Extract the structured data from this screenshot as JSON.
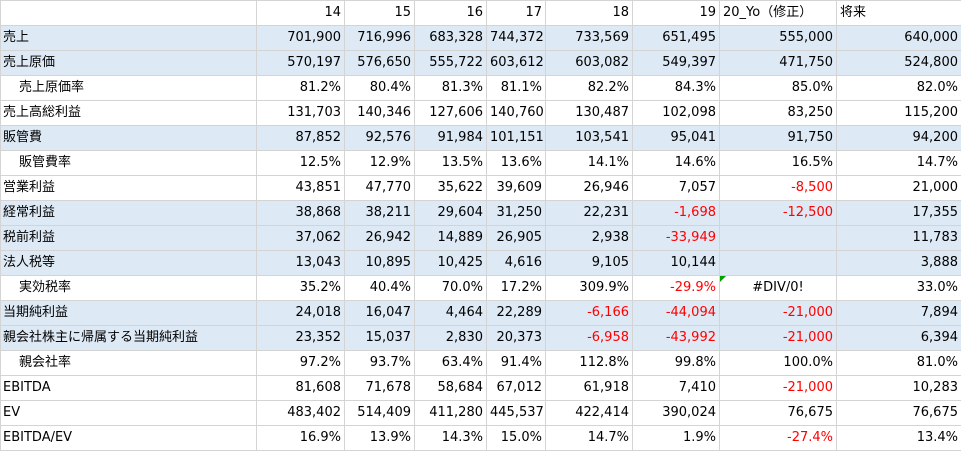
{
  "headers": [
    "",
    "14",
    "15",
    "16",
    "17",
    "18",
    "19",
    "20_Yo（修正）",
    "将来"
  ],
  "rows": [
    {
      "label": "売上",
      "indent": false,
      "hl": true,
      "cells": [
        "701,900",
        "716,996",
        "683,328",
        "744,372",
        "733,569",
        "651,495",
        "555,000",
        "640,000"
      ]
    },
    {
      "label": "売上原価",
      "indent": false,
      "hl": true,
      "cells": [
        "570,197",
        "576,650",
        "555,722",
        "603,612",
        "603,082",
        "549,397",
        "471,750",
        "524,800"
      ]
    },
    {
      "label": "売上原価率",
      "indent": true,
      "hl": false,
      "cells": [
        "81.2%",
        "80.4%",
        "81.3%",
        "81.1%",
        "82.2%",
        "84.3%",
        "85.0%",
        "82.0%"
      ]
    },
    {
      "label": "売上高総利益",
      "indent": false,
      "hl": false,
      "cells": [
        "131,703",
        "140,346",
        "127,606",
        "140,760",
        "130,487",
        "102,098",
        "83,250",
        "115,200"
      ]
    },
    {
      "label": "販管費",
      "indent": false,
      "hl": true,
      "cells": [
        "87,852",
        "92,576",
        "91,984",
        "101,151",
        "103,541",
        "95,041",
        "91,750",
        "94,200"
      ]
    },
    {
      "label": "販管費率",
      "indent": true,
      "hl": false,
      "cells": [
        "12.5%",
        "12.9%",
        "13.5%",
        "13.6%",
        "14.1%",
        "14.6%",
        "16.5%",
        "14.7%"
      ]
    },
    {
      "label": "営業利益",
      "indent": false,
      "hl": false,
      "cells": [
        "43,851",
        "47,770",
        "35,622",
        "39,609",
        "26,946",
        "7,057",
        "-8,500",
        "21,000"
      ]
    },
    {
      "label": "経常利益",
      "indent": false,
      "hl": true,
      "cells": [
        "38,868",
        "38,211",
        "29,604",
        "31,250",
        "22,231",
        "-1,698",
        "-12,500",
        "17,355"
      ]
    },
    {
      "label": "税前利益",
      "indent": false,
      "hl": true,
      "cells": [
        "37,062",
        "26,942",
        "14,889",
        "26,905",
        "2,938",
        "-33,949",
        "",
        "11,783"
      ]
    },
    {
      "label": "法人税等",
      "indent": false,
      "hl": true,
      "cells": [
        "13,043",
        "10,895",
        "10,425",
        "4,616",
        "9,105",
        "10,144",
        "",
        "3,888"
      ]
    },
    {
      "label": "実効税率",
      "indent": true,
      "hl": false,
      "cells": [
        "35.2%",
        "40.4%",
        "70.0%",
        "17.2%",
        "309.9%",
        "-29.9%",
        "#DIV/0!",
        "33.0%"
      ]
    },
    {
      "label": "当期純利益",
      "indent": false,
      "hl": true,
      "cells": [
        "24,018",
        "16,047",
        "4,464",
        "22,289",
        "-6,166",
        "-44,094",
        "-21,000",
        "7,894"
      ]
    },
    {
      "label": "親会社株主に帰属する当期純利益",
      "indent": false,
      "hl": true,
      "cells": [
        "23,352",
        "15,037",
        "2,830",
        "20,373",
        "-6,958",
        "-43,992",
        "-21,000",
        "6,394"
      ]
    },
    {
      "label": "親会社率",
      "indent": true,
      "hl": false,
      "cells": [
        "97.2%",
        "93.7%",
        "63.4%",
        "91.4%",
        "112.8%",
        "99.8%",
        "100.0%",
        "81.0%"
      ]
    },
    {
      "label": "EBITDA",
      "indent": false,
      "hl": false,
      "cells": [
        "81,608",
        "71,678",
        "58,684",
        "67,012",
        "61,918",
        "7,410",
        "-21,000",
        "10,283"
      ]
    },
    {
      "label": "EV",
      "indent": false,
      "hl": false,
      "cells": [
        "483,402",
        "514,409",
        "411,280",
        "445,537",
        "422,414",
        "390,024",
        "76,675",
        "76,675"
      ]
    },
    {
      "label": "EBITDA/EV",
      "indent": false,
      "hl": false,
      "cells": [
        "16.9%",
        "13.9%",
        "14.3%",
        "15.0%",
        "14.7%",
        "1.9%",
        "-27.4%",
        "13.4%"
      ]
    }
  ],
  "colors": {
    "highlight": "#dde9f5",
    "negative": "#ff0000",
    "gridline": "#d4d4d4"
  }
}
